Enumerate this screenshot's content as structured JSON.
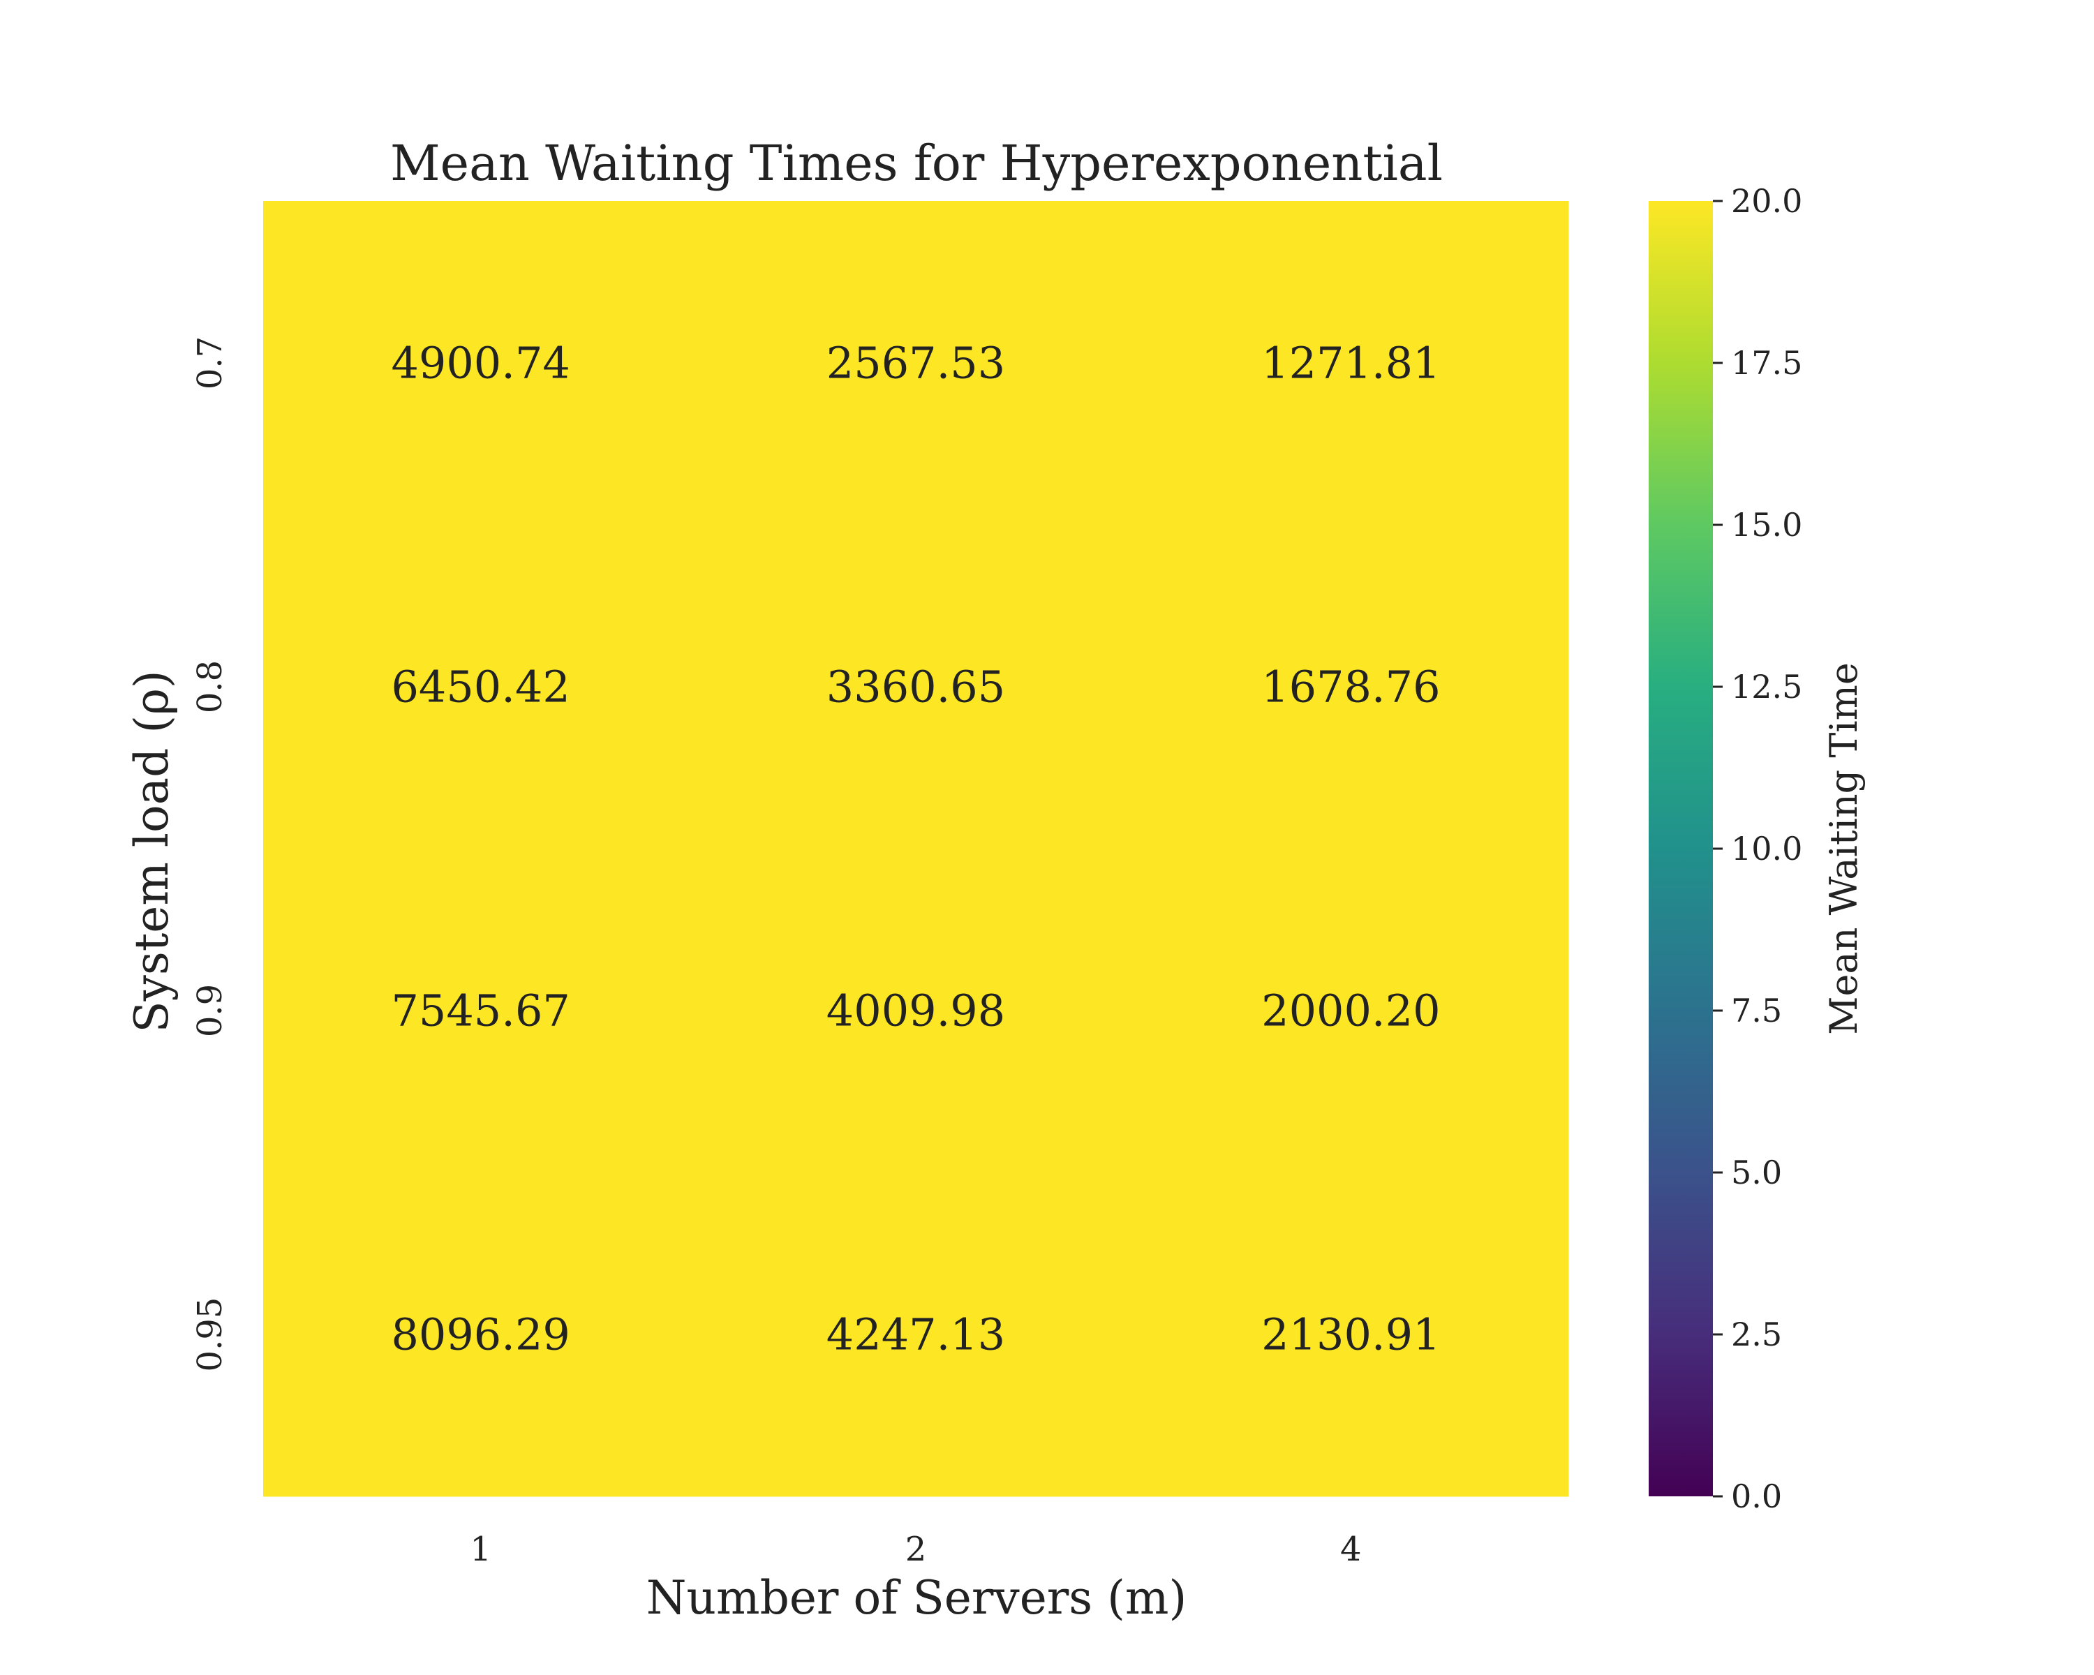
{
  "chart_data": {
    "type": "heatmap",
    "title": "Mean Waiting Times for Hyperexponential",
    "xlabel": "Number of Servers (m)",
    "ylabel": "System load (ρ)",
    "x_categories": [
      "1",
      "2",
      "4"
    ],
    "y_categories": [
      "0.7",
      "0.8",
      "0.9",
      "0.95"
    ],
    "values": [
      [
        4900.74,
        2567.53,
        1271.81
      ],
      [
        6450.42,
        3360.65,
        1678.76
      ],
      [
        7545.67,
        4009.98,
        2000.2
      ],
      [
        8096.29,
        4247.13,
        2130.91
      ]
    ],
    "cell_labels": [
      [
        "4900.74",
        "2567.53",
        "1271.81"
      ],
      [
        "6450.42",
        "3360.65",
        "1678.76"
      ],
      [
        "7545.67",
        "4009.98",
        "2000.20"
      ],
      [
        "8096.29",
        "4247.13",
        "2130.91"
      ]
    ],
    "colorbar": {
      "label": "Mean Waiting Time",
      "vmin": 0,
      "vmax": 20,
      "colormap": "viridis",
      "ticks": [
        "0.0",
        "2.5",
        "5.0",
        "7.5",
        "10.0",
        "12.5",
        "15.0",
        "17.5",
        "20.0"
      ]
    },
    "cell_color": "#fde725",
    "grid": false
  }
}
